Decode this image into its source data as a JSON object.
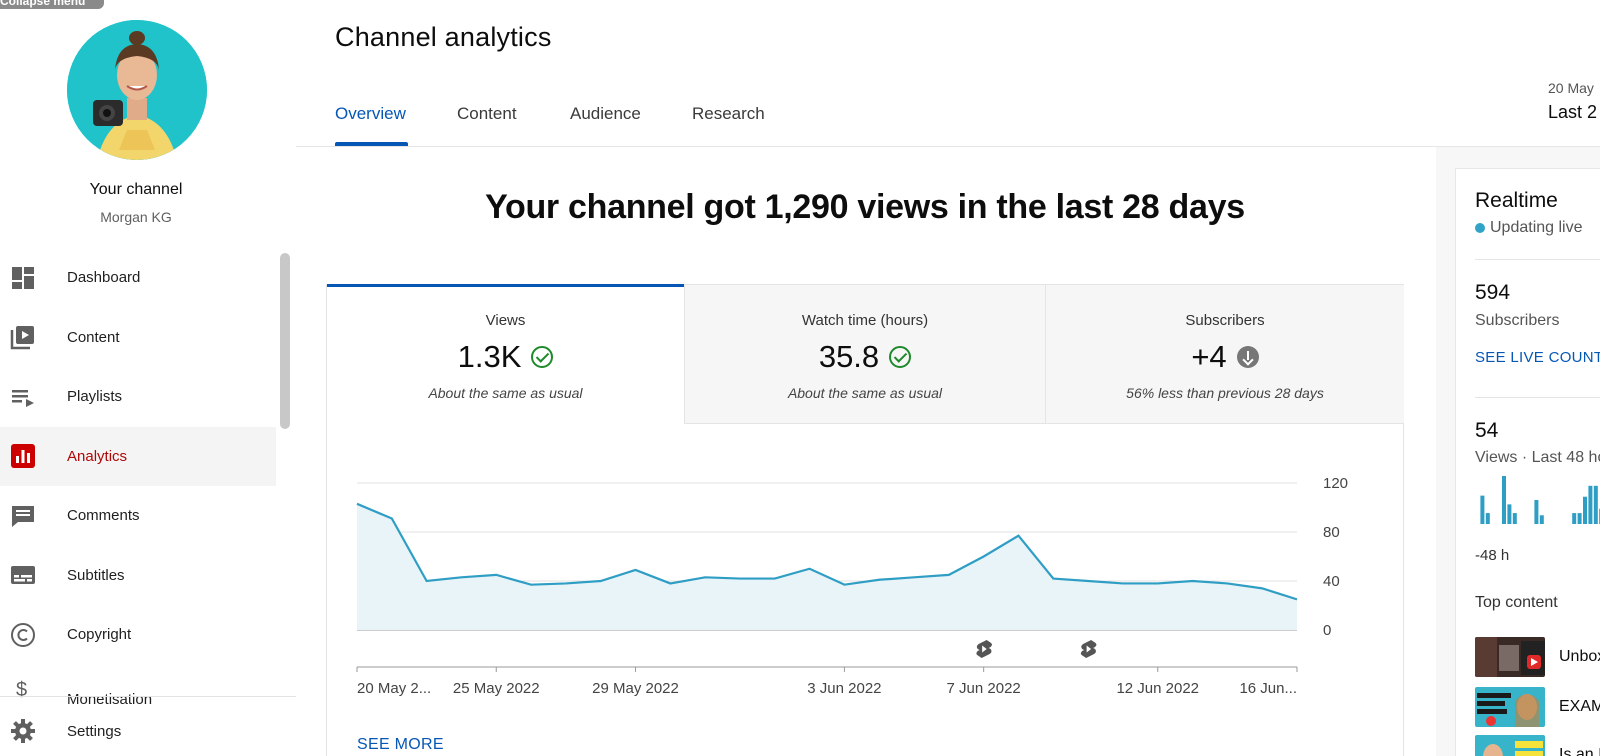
{
  "collapse_tag": "Collapse menu",
  "sidebar": {
    "channel_title": "Your channel",
    "channel_name": "Morgan KG",
    "items": [
      {
        "label": "Dashboard",
        "icon": "dashboard-icon"
      },
      {
        "label": "Content",
        "icon": "content-icon"
      },
      {
        "label": "Playlists",
        "icon": "playlists-icon"
      },
      {
        "label": "Analytics",
        "icon": "analytics-icon",
        "active": true
      },
      {
        "label": "Comments",
        "icon": "comments-icon"
      },
      {
        "label": "Subtitles",
        "icon": "subtitles-icon"
      },
      {
        "label": "Copyright",
        "icon": "copyright-icon"
      },
      {
        "label": "Monetisation",
        "icon": "monetisation-icon"
      }
    ],
    "settings_label": "Settings"
  },
  "header": {
    "title": "Channel analytics",
    "tabs": [
      "Overview",
      "Content",
      "Audience",
      "Research"
    ],
    "active_tab": "Overview",
    "date_range_small": "20 May",
    "date_range_large": "Last 2"
  },
  "main": {
    "headline": "Your channel got 1,290 views in the last 28 days",
    "metrics": [
      {
        "label": "Views",
        "value": "1.3K",
        "status": "check",
        "note": "About the same as usual"
      },
      {
        "label": "Watch time (hours)",
        "value": "35.8",
        "status": "check",
        "note": "About the same as usual"
      },
      {
        "label": "Subscribers",
        "value": "+4",
        "status": "down",
        "note": "56% less than previous 28 days"
      }
    ],
    "see_more": "SEE MORE"
  },
  "chart_data": {
    "type": "area",
    "series": [
      {
        "values": [
          103,
          91,
          40,
          43,
          45,
          37,
          38,
          40,
          49,
          38,
          43,
          42,
          42,
          50,
          37,
          41,
          43,
          45,
          60,
          77,
          42,
          40,
          38,
          38,
          40,
          38,
          34,
          25
        ]
      }
    ],
    "x_tick_labels": [
      "20 May 2...",
      "25 May 2022",
      "29 May 2022",
      "3 Jun 2022",
      "7 Jun 2022",
      "12 Jun 2022",
      "16 Jun..."
    ],
    "x_tick_index": [
      0,
      4,
      8,
      14,
      18,
      23,
      27
    ],
    "y_ticks": [
      0,
      40,
      80,
      120
    ],
    "ylim": [
      0,
      120
    ],
    "marker_index": [
      18,
      21
    ],
    "marker_icon": "shorts-icon",
    "color": "#2f9ec4",
    "fill": "#e9f4f9",
    "grid": true
  },
  "realtime": {
    "title": "Realtime",
    "live_label": "Updating live",
    "subscribers_value": "594",
    "subscribers_label": "Subscribers",
    "see_live_count": "SEE LIVE COUNT",
    "views_value": "54",
    "views_label": "Views · Last 48 ho",
    "bars": [
      0,
      26,
      10,
      0,
      0,
      44,
      18,
      10,
      0,
      0,
      0,
      22,
      8,
      0,
      0,
      0,
      0,
      0,
      10,
      10,
      25,
      35,
      35,
      14,
      0,
      24,
      20
    ],
    "axis_label": "-48 h",
    "top_content_label": "Top content",
    "top_content": [
      {
        "title": "Unbox",
        "thumb": "thumb-unboxing"
      },
      {
        "title": "EXAM",
        "thumb": "thumb-smart-objectives"
      },
      {
        "title": "Is an I",
        "thumb": "thumb-was-it-worth"
      }
    ],
    "accent": "#2f9ec4"
  }
}
